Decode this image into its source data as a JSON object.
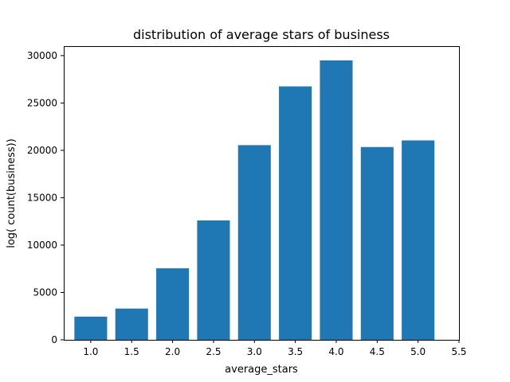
{
  "chart_data": {
    "type": "bar",
    "title": "distribution of average stars of business",
    "xlabel": "average_stars",
    "ylabel": "log( count(business))",
    "categories": [
      1.0,
      1.5,
      2.0,
      2.5,
      3.0,
      3.5,
      4.0,
      4.5,
      5.0
    ],
    "values": [
      2450,
      3300,
      7550,
      12600,
      20550,
      26750,
      29500,
      20350,
      21050
    ],
    "xlim": [
      0.67,
      5.5
    ],
    "ylim": [
      0,
      31000
    ],
    "x_ticks": [
      "1.0",
      "1.5",
      "2.0",
      "2.5",
      "3.0",
      "3.5",
      "4.0",
      "4.5",
      "5.0",
      "5.5"
    ],
    "y_ticks": [
      "0",
      "5000",
      "10000",
      "15000",
      "20000",
      "25000",
      "30000"
    ],
    "bar_color": "#1f77b4",
    "grid": false,
    "legend": "none"
  }
}
